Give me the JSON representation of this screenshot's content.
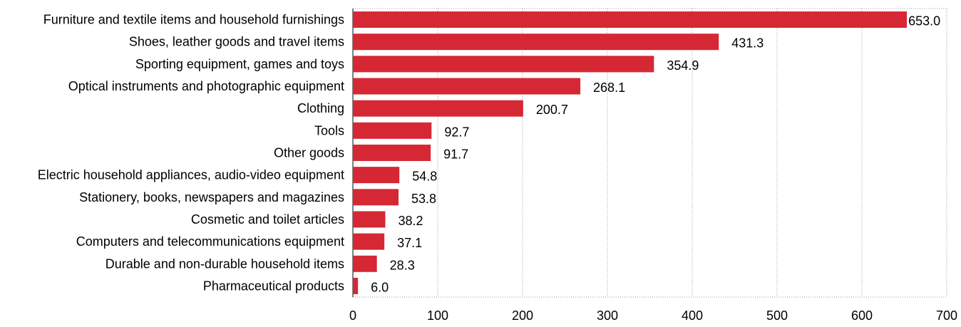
{
  "chart_data": {
    "type": "bar",
    "orientation": "horizontal",
    "title": "",
    "xlabel": "",
    "ylabel": "",
    "categories": [
      "Furniture and textile items and household furnishings",
      "Shoes, leather goods and travel items",
      "Sporting equipment, games and toys",
      "Optical instruments and photographic equipment",
      "Clothing",
      "Tools",
      "Other goods",
      "Electric household appliances, audio-video equipment",
      "Stationery, books, newspapers and magazines",
      "Cosmetic and toilet articles",
      "Computers and telecommunications equipment",
      "Durable and non-durable household items",
      "Pharmaceutical products"
    ],
    "values": [
      653.0,
      431.3,
      354.9,
      268.1,
      200.7,
      92.7,
      91.7,
      54.8,
      53.8,
      38.2,
      37.1,
      28.3,
      6.0
    ],
    "value_labels": [
      "653.0",
      "431.3",
      "354.9",
      "268.1",
      "200.7",
      "92.7",
      "91.7",
      "54.8",
      "53.8",
      "38.2",
      "37.1",
      "28.3",
      "6.0"
    ],
    "xlim": [
      0,
      700
    ],
    "xticks": [
      0,
      100,
      200,
      300,
      400,
      500,
      600,
      700
    ],
    "grid": true,
    "legend": "none",
    "bar_color": "#d62834"
  }
}
